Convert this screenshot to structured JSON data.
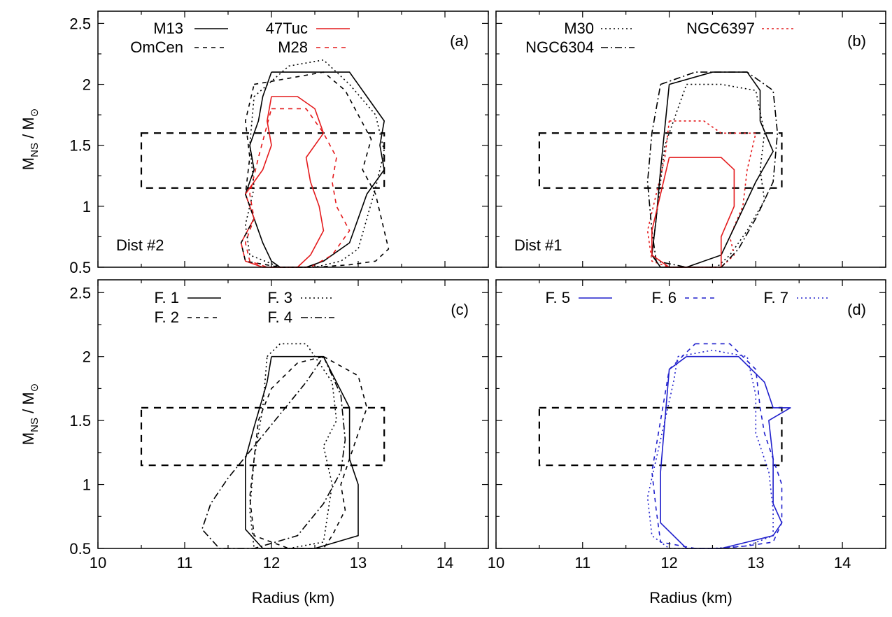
{
  "chart_data": [
    {
      "type": "line",
      "panel": "(a)",
      "annotation": "Dist #2",
      "xlim": [
        10,
        14.5
      ],
      "ylim": [
        0.5,
        2.6
      ],
      "xticks": [
        "10",
        "11",
        "12",
        "13",
        "14"
      ],
      "yticks": [
        "0.5",
        "1",
        "1.5",
        "2",
        "2.5"
      ],
      "xlabel": "",
      "ylabel": "M_NS / M_⊙",
      "ylabel_parts": {
        "main": "M",
        "sub": "NS",
        "sep": " / ",
        "main2": "M",
        "sub2": "⊙"
      },
      "box": {
        "x": [
          10.5,
          13.3
        ],
        "y": [
          1.15,
          1.6
        ]
      },
      "series": [
        {
          "name": "M13",
          "color": "#000000",
          "dash": "solid",
          "legend_col": 0,
          "legend_row": 0,
          "x": [
            12.0,
            12.9,
            13.1,
            13.3,
            13.25,
            13.3,
            13.1,
            13.0,
            12.9,
            12.6,
            12.4,
            12.1,
            12.0,
            11.9,
            11.8,
            11.7,
            11.8,
            11.75,
            11.85,
            11.9,
            11.95,
            12.0
          ],
          "y": [
            2.1,
            2.1,
            1.9,
            1.7,
            1.5,
            1.3,
            1.1,
            0.9,
            0.7,
            0.55,
            0.5,
            0.5,
            0.55,
            0.7,
            0.9,
            1.1,
            1.3,
            1.5,
            1.7,
            1.9,
            2.0,
            2.1
          ]
        },
        {
          "name": "47Tuc",
          "color": "#e41a1c",
          "dash": "solid",
          "legend_col": 1,
          "legend_row": 0,
          "x": [
            12.0,
            12.3,
            12.5,
            12.6,
            12.4,
            12.45,
            12.55,
            12.6,
            12.45,
            12.3,
            12.1,
            11.9,
            11.7,
            11.65,
            11.8,
            11.7,
            11.9,
            12.0,
            11.95,
            12.0
          ],
          "y": [
            1.9,
            1.9,
            1.8,
            1.6,
            1.4,
            1.2,
            1.0,
            0.8,
            0.6,
            0.5,
            0.5,
            0.5,
            0.55,
            0.7,
            0.9,
            1.1,
            1.3,
            1.5,
            1.7,
            1.9
          ]
        },
        {
          "name": "OmCen",
          "color": "#000000",
          "dash": "6 6",
          "legend_col": 0,
          "legend_row": 1,
          "x": [
            11.8,
            12.2,
            12.6,
            12.85,
            13.0,
            13.15,
            13.05,
            13.2,
            13.35,
            13.2,
            12.9,
            12.5,
            12.1,
            11.7,
            11.65,
            11.8,
            11.7,
            11.75,
            11.7,
            11.8
          ],
          "y": [
            2.0,
            2.05,
            2.1,
            1.95,
            1.75,
            1.55,
            1.3,
            1.1,
            0.65,
            0.55,
            0.52,
            0.5,
            0.5,
            0.55,
            0.7,
            0.9,
            1.1,
            1.4,
            1.7,
            2.0
          ]
        },
        {
          "name": "M28",
          "color": "#e41a1c",
          "dash": "6 6",
          "legend_col": 1,
          "legend_row": 1,
          "x": [
            12.0,
            12.4,
            12.6,
            12.75,
            12.7,
            12.75,
            12.9,
            12.7,
            12.45,
            12.2,
            11.95,
            11.75,
            11.7,
            11.8,
            11.75,
            11.85,
            12.0
          ],
          "y": [
            1.8,
            1.8,
            1.6,
            1.4,
            1.2,
            1.0,
            0.8,
            0.6,
            0.5,
            0.5,
            0.5,
            0.55,
            0.7,
            0.9,
            1.1,
            1.4,
            1.8
          ]
        },
        {
          "name": "",
          "color": "#000000",
          "dash": "2 4",
          "legend_col": -1,
          "legend_row": -1,
          "x": [
            11.8,
            12.2,
            12.6,
            12.9,
            13.2,
            13.3,
            13.2,
            13.1,
            13.0,
            12.8,
            12.5,
            12.1,
            11.75,
            11.7,
            11.8,
            11.75,
            11.8
          ],
          "y": [
            1.9,
            2.15,
            2.2,
            2.0,
            1.75,
            1.45,
            1.15,
            0.9,
            0.65,
            0.55,
            0.5,
            0.5,
            0.6,
            0.85,
            1.15,
            1.5,
            1.9
          ]
        }
      ]
    },
    {
      "type": "line",
      "panel": "(b)",
      "annotation": "Dist #1",
      "xlim": [
        10,
        14.5
      ],
      "ylim": [
        0.5,
        2.6
      ],
      "xticks": [
        "10",
        "11",
        "12",
        "13",
        "14"
      ],
      "yticks": [
        "0.5",
        "1",
        "1.5",
        "2",
        "2.5"
      ],
      "xlabel": "",
      "ylabel": "",
      "box": {
        "x": [
          10.5,
          13.3
        ],
        "y": [
          1.15,
          1.6
        ]
      },
      "series": [
        {
          "name": "M30",
          "color": "#000000",
          "dash": "2 4",
          "legend_col": 0,
          "legend_row": 0,
          "x": [
            12.2,
            12.6,
            13.0,
            13.1,
            13.05,
            13.1,
            12.9,
            12.7,
            12.55,
            12.3,
            12.0,
            11.8,
            11.85,
            11.9,
            11.95,
            12.1,
            12.2
          ],
          "y": [
            2.0,
            2.0,
            1.95,
            1.6,
            1.3,
            1.05,
            0.8,
            0.6,
            0.5,
            0.5,
            0.5,
            0.6,
            0.9,
            1.2,
            1.5,
            1.8,
            2.0
          ]
        },
        {
          "name": "NGC6397",
          "color": "#e41a1c",
          "dash": "3 4",
          "legend_col": 1,
          "legend_row": 0,
          "x": [
            12.0,
            12.4,
            12.6,
            13.0,
            12.9,
            12.85,
            12.7,
            12.75,
            12.6,
            12.3,
            12.0,
            11.8,
            11.75,
            11.85,
            11.95,
            12.0
          ],
          "y": [
            1.7,
            1.7,
            1.6,
            1.6,
            1.3,
            1.0,
            0.75,
            0.6,
            0.5,
            0.5,
            0.5,
            0.55,
            0.8,
            1.1,
            1.4,
            1.7
          ]
        },
        {
          "name": "NGC6304",
          "color": "#000000",
          "dash": "10 4 2 4",
          "legend_col": 0,
          "legend_row": 1,
          "x": [
            11.9,
            12.3,
            12.9,
            13.2,
            13.25,
            13.2,
            13.0,
            12.8,
            12.6,
            12.2,
            11.85,
            11.8,
            11.75,
            11.8,
            11.9
          ],
          "y": [
            2.0,
            2.1,
            2.1,
            1.95,
            1.6,
            1.2,
            0.9,
            0.65,
            0.5,
            0.5,
            0.55,
            0.8,
            1.2,
            1.6,
            2.0
          ]
        },
        {
          "name": "",
          "color": "#000000",
          "dash": "solid",
          "legend_col": -1,
          "legend_row": -1,
          "x": [
            12.0,
            12.5,
            12.9,
            13.05,
            13.05,
            13.2,
            13.0,
            12.8,
            12.6,
            12.2,
            11.9,
            11.8,
            11.85,
            11.9,
            12.0
          ],
          "y": [
            2.0,
            2.1,
            2.1,
            1.95,
            1.7,
            1.45,
            1.2,
            0.9,
            0.6,
            0.5,
            0.5,
            0.6,
            0.9,
            1.3,
            2.0
          ]
        },
        {
          "name": "",
          "color": "#e41a1c",
          "dash": "solid",
          "legend_col": -1,
          "legend_row": -1,
          "x": [
            12.0,
            12.6,
            12.75,
            12.75,
            12.6,
            12.6,
            12.3,
            12.0,
            11.8,
            11.8,
            11.9,
            12.0
          ],
          "y": [
            1.4,
            1.4,
            1.3,
            1.0,
            0.75,
            0.5,
            0.5,
            0.5,
            0.6,
            0.8,
            1.1,
            1.4
          ]
        }
      ]
    },
    {
      "type": "line",
      "panel": "(c)",
      "annotation": "",
      "xlim": [
        10,
        14.5
      ],
      "ylim": [
        0.5,
        2.6
      ],
      "xticks": [
        "10",
        "11",
        "12",
        "13",
        "14"
      ],
      "yticks": [
        "0.5",
        "1",
        "1.5",
        "2",
        "2.5"
      ],
      "xlabel": "Radius (km)",
      "ylabel": "M_NS / M_⊙",
      "ylabel_parts": {
        "main": "M",
        "sub": "NS",
        "sep": " / ",
        "main2": "M",
        "sub2": "⊙"
      },
      "box": {
        "x": [
          10.5,
          13.3
        ],
        "y": [
          1.15,
          1.6
        ]
      },
      "series": [
        {
          "name": "F. 1",
          "color": "#000000",
          "dash": "solid",
          "legend_col": 0,
          "legend_row": 0,
          "x": [
            12.0,
            12.6,
            12.75,
            12.9,
            12.9,
            13.0,
            13.0,
            12.5,
            11.9,
            11.7,
            11.7,
            11.8,
            11.95,
            12.0
          ],
          "y": [
            2.0,
            2.0,
            1.8,
            1.6,
            1.2,
            1.0,
            0.6,
            0.5,
            0.5,
            0.65,
            1.2,
            1.45,
            1.8,
            2.0
          ]
        },
        {
          "name": "F. 2",
          "color": "#000000",
          "dash": "6 6",
          "legend_col": 0,
          "legend_row": 1,
          "x": [
            12.6,
            13.0,
            13.1,
            12.95,
            12.8,
            12.85,
            12.7,
            12.6,
            12.2,
            11.8,
            11.75,
            11.8,
            11.85,
            12.0,
            12.3,
            12.6
          ],
          "y": [
            2.0,
            1.85,
            1.6,
            1.3,
            1.0,
            0.8,
            0.6,
            0.5,
            0.5,
            0.6,
            0.9,
            1.2,
            1.5,
            1.75,
            1.95,
            2.0
          ]
        },
        {
          "name": "F. 3",
          "color": "#000000",
          "dash": "2 4",
          "legend_col": 1,
          "legend_row": 0,
          "x": [
            11.95,
            12.1,
            12.4,
            12.5,
            12.7,
            12.75,
            12.6,
            12.7,
            12.6,
            12.2,
            11.8,
            11.75,
            11.8,
            11.9,
            11.95
          ],
          "y": [
            2.0,
            2.1,
            2.1,
            2.0,
            1.8,
            1.5,
            1.3,
            1.0,
            0.55,
            0.5,
            0.5,
            0.8,
            1.2,
            1.6,
            2.0
          ]
        },
        {
          "name": "F. 4",
          "color": "#000000",
          "dash": "10 4 2 4",
          "legend_col": 1,
          "legend_row": 1,
          "x": [
            12.6,
            12.8,
            12.85,
            12.8,
            12.6,
            12.3,
            11.8,
            11.4,
            11.2,
            11.3,
            11.5,
            11.8,
            12.1,
            12.4,
            12.6
          ],
          "y": [
            2.0,
            1.7,
            1.35,
            1.1,
            0.85,
            0.6,
            0.5,
            0.5,
            0.65,
            0.85,
            1.05,
            1.3,
            1.55,
            1.8,
            2.0
          ]
        }
      ]
    },
    {
      "type": "line",
      "panel": "(d)",
      "annotation": "",
      "xlim": [
        10,
        14.5
      ],
      "ylim": [
        0.5,
        2.6
      ],
      "xticks": [
        "10",
        "11",
        "12",
        "13",
        "14"
      ],
      "yticks": [
        "0.5",
        "1",
        "1.5",
        "2",
        "2.5"
      ],
      "xlabel": "Radius (km)",
      "ylabel": "",
      "box": {
        "x": [
          10.5,
          13.3
        ],
        "y": [
          1.15,
          1.6
        ]
      },
      "series": [
        {
          "name": "F. 5",
          "color": "#1f1fcc",
          "dash": "solid",
          "legend_col": 0,
          "legend_row": 0,
          "x": [
            12.2,
            12.8,
            13.1,
            13.2,
            13.4,
            13.15,
            13.2,
            13.2,
            13.3,
            13.2,
            12.9,
            12.6,
            12.2,
            11.9,
            11.9,
            11.95,
            12.0,
            12.2
          ],
          "y": [
            2.0,
            2.0,
            1.8,
            1.6,
            1.6,
            1.5,
            1.2,
            0.85,
            0.7,
            0.6,
            0.55,
            0.5,
            0.5,
            0.7,
            1.1,
            1.5,
            1.9,
            2.0
          ]
        },
        {
          "name": "F. 6",
          "color": "#1f1fcc",
          "dash": "6 6",
          "legend_col": 1,
          "legend_row": 0,
          "x": [
            12.3,
            12.7,
            13.0,
            13.05,
            13.1,
            13.2,
            13.3,
            13.3,
            13.2,
            12.9,
            12.6,
            12.3,
            11.9,
            11.85,
            11.8,
            11.9,
            12.0,
            12.3
          ],
          "y": [
            2.1,
            2.1,
            1.9,
            1.6,
            1.4,
            1.2,
            1.0,
            0.7,
            0.55,
            0.52,
            0.5,
            0.5,
            0.55,
            0.8,
            1.1,
            1.5,
            1.9,
            2.1
          ]
        },
        {
          "name": "F. 7",
          "color": "#1f1fcc",
          "dash": "2 4",
          "legend_col": 2,
          "legend_row": 0,
          "x": [
            12.1,
            12.5,
            12.9,
            13.0,
            13.0,
            13.15,
            13.2,
            13.2,
            12.9,
            12.5,
            12.0,
            11.8,
            11.75,
            11.85,
            11.95,
            12.05,
            12.1
          ],
          "y": [
            2.0,
            2.05,
            2.0,
            1.7,
            1.4,
            1.1,
            0.8,
            0.6,
            0.52,
            0.5,
            0.5,
            0.6,
            0.9,
            1.2,
            1.5,
            1.8,
            2.0
          ]
        }
      ]
    }
  ]
}
